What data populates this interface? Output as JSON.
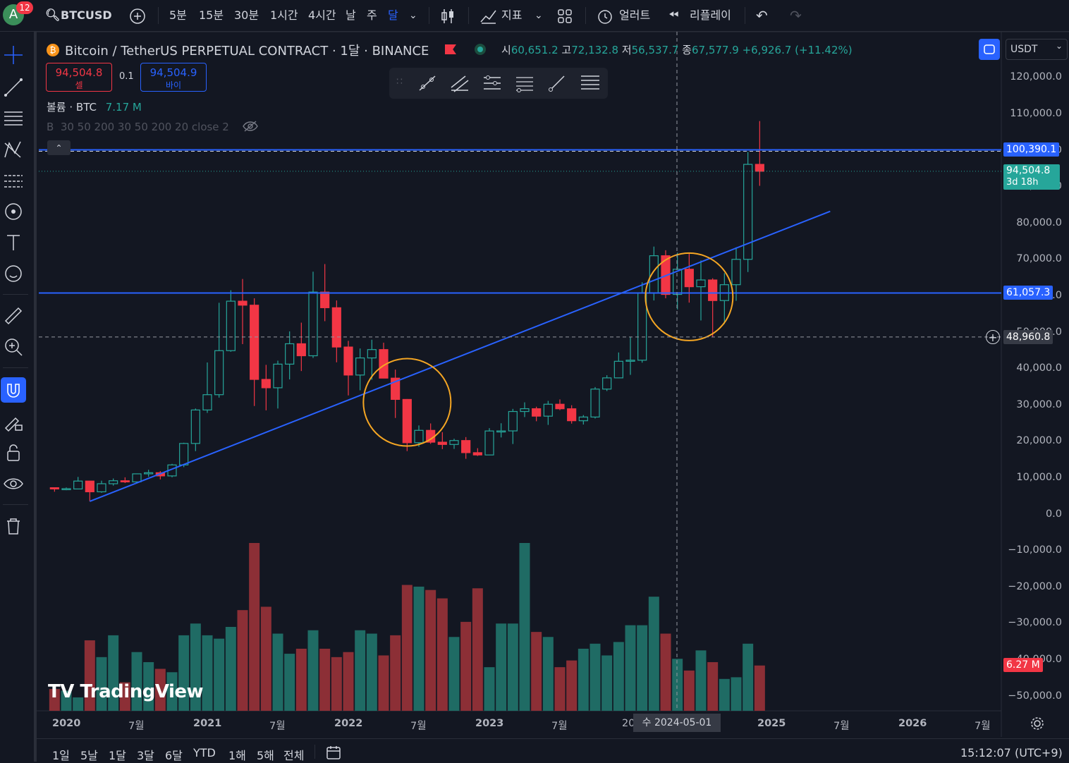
{
  "topbar": {
    "avatar_letter": "A",
    "notif_count": "12",
    "symbol": "BTCUSD",
    "intervals": [
      "5분",
      "15분",
      "30분",
      "1시간",
      "4시간",
      "날",
      "주",
      "달"
    ],
    "active_interval": "달",
    "indicators_label": "지표",
    "alert_label": "얼러트",
    "replay_label": "리플레이"
  },
  "legend": {
    "title": "Bitcoin / TetherUS PERPETUAL CONTRACT · 1달 · BINANCE",
    "o_label": "시",
    "o_val": "60,651.2",
    "h_label": "고",
    "h_val": "72,132.8",
    "l_label": "저",
    "l_val": "56,537.7",
    "c_label": "종",
    "c_val": "67,577.9",
    "change": "+6,926.7 (+11.42%)",
    "sell_price": "94,504.8",
    "sell_label": "셀",
    "spread": "0.1",
    "buy_price": "94,504.9",
    "buy_label": "바이",
    "volume_label": "볼륨 · BTC",
    "volume_val": "7.17 M",
    "indicator_line": "B  30 50 200 30 50 200 20 close 2"
  },
  "currency": "USDT",
  "price_axis": [
    "120,000.0",
    "110,000.0",
    "100,000.0",
    "90,000.0",
    "80,000.0",
    "70,000.0",
    "60,000.0",
    "50,000.0",
    "40,000.0",
    "30,000.0",
    "20,000.0",
    "10,000.0",
    "0.0",
    "−10,000.0",
    "−20,000.0",
    "−30,000.0",
    "−40,000.0",
    "−50,000.0"
  ],
  "price_tags": {
    "resistance": "100,390.1",
    "current": "94,504.8",
    "countdown": "3d 18h",
    "support": "61,057.3",
    "crosshair": "48,960.8",
    "volume": "6.27 M"
  },
  "time_axis": [
    "2020",
    "7월",
    "2021",
    "7월",
    "2022",
    "7월",
    "2023",
    "7월",
    "20",
    "2025",
    "7월",
    "2026",
    "7월"
  ],
  "crosshair_date": "수 2024-05-01",
  "bottombar": {
    "ranges": [
      "1일",
      "5날",
      "1달",
      "3달",
      "6달",
      "YTD",
      "1해",
      "5해",
      "전체"
    ],
    "clock": "15:12:07 (UTC+9)"
  },
  "watermark": "TradingView",
  "colors": {
    "up": "#26a69a",
    "down": "#f23645",
    "trendline": "#2962ff",
    "circle": "#f5a623",
    "bg": "#131722"
  },
  "chart_data": {
    "type": "candlestick",
    "interval": "1 month",
    "candles": [
      {
        "t": "2019-12",
        "o": 7540,
        "h": 7650,
        "l": 6430,
        "c": 7200
      },
      {
        "t": "2020-01",
        "o": 7200,
        "h": 7600,
        "l": 6850,
        "c": 7280
      },
      {
        "t": "2020-02",
        "o": 7190,
        "h": 10500,
        "l": 8500,
        "c": 9360
      },
      {
        "t": "2020-03",
        "o": 9360,
        "h": 9150,
        "l": 3780,
        "c": 6410
      },
      {
        "t": "2020-04",
        "o": 6410,
        "h": 9470,
        "l": 6150,
        "c": 8630
      },
      {
        "t": "2020-05",
        "o": 8630,
        "h": 10070,
        "l": 8120,
        "c": 9450
      },
      {
        "t": "2020-06",
        "o": 9450,
        "h": 10390,
        "l": 8820,
        "c": 9140
      },
      {
        "t": "2020-07",
        "o": 9140,
        "h": 11440,
        "l": 8920,
        "c": 11350
      },
      {
        "t": "2020-08",
        "o": 11350,
        "h": 12470,
        "l": 10550,
        "c": 11660
      },
      {
        "t": "2020-09",
        "o": 11660,
        "h": 12090,
        "l": 9820,
        "c": 10780
      },
      {
        "t": "2020-10",
        "o": 10780,
        "h": 14100,
        "l": 10400,
        "c": 13800
      },
      {
        "t": "2020-11",
        "o": 13800,
        "h": 19900,
        "l": 13200,
        "c": 19700
      },
      {
        "t": "2020-12",
        "o": 19700,
        "h": 29300,
        "l": 17600,
        "c": 28900
      },
      {
        "t": "2021-01",
        "o": 28900,
        "h": 41950,
        "l": 28100,
        "c": 33100
      },
      {
        "t": "2021-02",
        "o": 33100,
        "h": 58350,
        "l": 32300,
        "c": 45200
      },
      {
        "t": "2021-03",
        "o": 45200,
        "h": 61800,
        "l": 44900,
        "c": 58800
      },
      {
        "t": "2021-04",
        "o": 58800,
        "h": 64900,
        "l": 47000,
        "c": 57700
      },
      {
        "t": "2021-05",
        "o": 57700,
        "h": 59600,
        "l": 30000,
        "c": 37300
      },
      {
        "t": "2021-06",
        "o": 37300,
        "h": 41300,
        "l": 28800,
        "c": 35000
      },
      {
        "t": "2021-07",
        "o": 35000,
        "h": 42450,
        "l": 29300,
        "c": 41500
      },
      {
        "t": "2021-08",
        "o": 41500,
        "h": 50500,
        "l": 37300,
        "c": 47100
      },
      {
        "t": "2021-09",
        "o": 47100,
        "h": 52900,
        "l": 39600,
        "c": 43800
      },
      {
        "t": "2021-10",
        "o": 43800,
        "h": 66900,
        "l": 43200,
        "c": 61300
      },
      {
        "t": "2021-11",
        "o": 61300,
        "h": 69000,
        "l": 53300,
        "c": 57000
      },
      {
        "t": "2021-12",
        "o": 57000,
        "h": 59000,
        "l": 42000,
        "c": 46200
      },
      {
        "t": "2022-01",
        "o": 46200,
        "h": 47900,
        "l": 32900,
        "c": 38500
      },
      {
        "t": "2022-02",
        "o": 38500,
        "h": 45800,
        "l": 34300,
        "c": 43200
      },
      {
        "t": "2022-03",
        "o": 43200,
        "h": 48200,
        "l": 37200,
        "c": 45500
      },
      {
        "t": "2022-04",
        "o": 45500,
        "h": 47400,
        "l": 37700,
        "c": 37650
      },
      {
        "t": "2022-05",
        "o": 37650,
        "h": 40000,
        "l": 26700,
        "c": 31800
      },
      {
        "t": "2022-06",
        "o": 31800,
        "h": 31900,
        "l": 17600,
        "c": 19900
      },
      {
        "t": "2022-07",
        "o": 19900,
        "h": 24650,
        "l": 18800,
        "c": 23300
      },
      {
        "t": "2022-08",
        "o": 23300,
        "h": 25200,
        "l": 19600,
        "c": 20050
      },
      {
        "t": "2022-09",
        "o": 20050,
        "h": 22800,
        "l": 18150,
        "c": 19420
      },
      {
        "t": "2022-10",
        "o": 19420,
        "h": 21000,
        "l": 18200,
        "c": 20500
      },
      {
        "t": "2022-11",
        "o": 20500,
        "h": 21450,
        "l": 15480,
        "c": 17170
      },
      {
        "t": "2022-12",
        "o": 17170,
        "h": 18400,
        "l": 16250,
        "c": 16540
      },
      {
        "t": "2023-01",
        "o": 16540,
        "h": 23900,
        "l": 16500,
        "c": 23130
      },
      {
        "t": "2023-02",
        "o": 23130,
        "h": 25250,
        "l": 21350,
        "c": 23150
      },
      {
        "t": "2023-03",
        "o": 23150,
        "h": 29200,
        "l": 19550,
        "c": 28480
      },
      {
        "t": "2023-04",
        "o": 28480,
        "h": 31000,
        "l": 26950,
        "c": 29250
      },
      {
        "t": "2023-05",
        "o": 29250,
        "h": 29800,
        "l": 25800,
        "c": 27200
      },
      {
        "t": "2023-06",
        "o": 27200,
        "h": 31400,
        "l": 24800,
        "c": 30480
      },
      {
        "t": "2023-07",
        "o": 30480,
        "h": 31800,
        "l": 28850,
        "c": 29230
      },
      {
        "t": "2023-08",
        "o": 29230,
        "h": 30200,
        "l": 25150,
        "c": 25940
      },
      {
        "t": "2023-09",
        "o": 25940,
        "h": 27500,
        "l": 24900,
        "c": 26960
      },
      {
        "t": "2023-10",
        "o": 26960,
        "h": 35200,
        "l": 26550,
        "c": 34640
      },
      {
        "t": "2023-11",
        "o": 34640,
        "h": 38450,
        "l": 34100,
        "c": 37720
      },
      {
        "t": "2023-12",
        "o": 37720,
        "h": 44700,
        "l": 37600,
        "c": 42280
      },
      {
        "t": "2024-01",
        "o": 42280,
        "h": 48960,
        "l": 38550,
        "c": 42580
      },
      {
        "t": "2024-02",
        "o": 42580,
        "h": 64000,
        "l": 41900,
        "c": 61130
      },
      {
        "t": "2024-03",
        "o": 61130,
        "h": 73800,
        "l": 59000,
        "c": 71290
      },
      {
        "t": "2024-04",
        "o": 71290,
        "h": 72800,
        "l": 59600,
        "c": 60650
      },
      {
        "t": "2024-05",
        "o": 60651.2,
        "h": 72132.8,
        "l": 56537.7,
        "c": 67577.9
      },
      {
        "t": "2024-06",
        "o": 67577.9,
        "h": 72000,
        "l": 58400,
        "c": 62770
      },
      {
        "t": "2024-07",
        "o": 62770,
        "h": 70000,
        "l": 53500,
        "c": 64630
      },
      {
        "t": "2024-08",
        "o": 64630,
        "h": 65100,
        "l": 49000,
        "c": 58970
      },
      {
        "t": "2024-09",
        "o": 58970,
        "h": 66500,
        "l": 52550,
        "c": 63330
      },
      {
        "t": "2024-10",
        "o": 63330,
        "h": 73600,
        "l": 58900,
        "c": 70300
      },
      {
        "t": "2024-11",
        "o": 70300,
        "h": 99800,
        "l": 66800,
        "c": 96400
      },
      {
        "t": "2024-12",
        "o": 96400,
        "h": 108300,
        "l": 90500,
        "c": 94504.8
      }
    ],
    "volume_relative": [
      0.13,
      0.12,
      0.08,
      0.42,
      0.32,
      0.45,
      0.17,
      0.35,
      0.29,
      0.25,
      0.23,
      0.45,
      0.52,
      0.45,
      0.43,
      0.5,
      0.6,
      1.0,
      0.62,
      0.46,
      0.34,
      0.37,
      0.48,
      0.37,
      0.32,
      0.35,
      0.48,
      0.46,
      0.33,
      0.45,
      0.75,
      0.74,
      0.72,
      0.67,
      0.44,
      0.53,
      0.73,
      0.26,
      0.52,
      0.52,
      1.0,
      0.47,
      0.44,
      0.26,
      0.3,
      0.37,
      0.4,
      0.33,
      0.41,
      0.51,
      0.51,
      0.68,
      0.46,
      0.31,
      0.24,
      0.36,
      0.29,
      0.19,
      0.2,
      0.4,
      0.27
    ],
    "horizontal_lines": [
      100390.1,
      61057.3
    ],
    "trendline": {
      "from": {
        "t": "2020-03",
        "price": 3800
      },
      "to": {
        "t": "2025-06",
        "price": 83500
      }
    },
    "highlight_circles": [
      {
        "t": "2022-06",
        "price": 31000
      },
      {
        "t": "2024-06",
        "price": 60000
      }
    ],
    "ylim": [
      -50000,
      120000
    ]
  }
}
